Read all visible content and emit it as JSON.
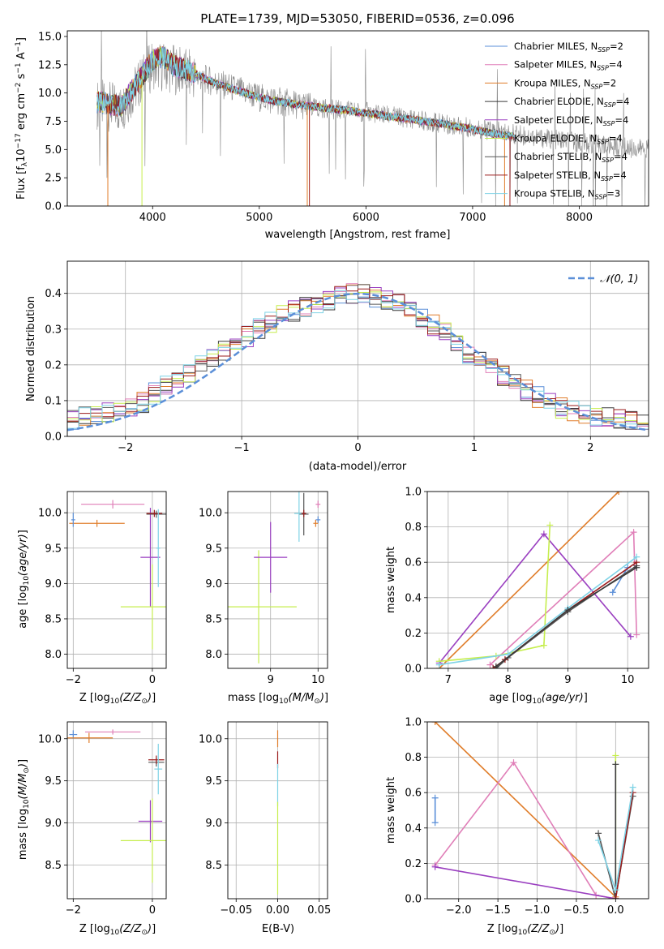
{
  "colors": {
    "Chabrier MILES": "#5b8fd8",
    "Salpeter MILES": "#e07fb8",
    "Kroupa MILES": "#e07d2a",
    "Chabrier ELODIE": "#3a3a3a",
    "Salpeter ELODIE": "#9a3fc0",
    "Kroupa ELODIE": "#c6ee4e",
    "Chabrier STELIB": "#555555",
    "Salpeter STELIB": "#9b1c1c",
    "Kroupa STELIB": "#7fd3e6",
    "data": "#8a8a8a",
    "normal": "#5b8fd8",
    "grid": "#b0b0b0"
  },
  "chart_data": [
    {
      "id": "spectrum",
      "type": "line",
      "title": "PLATE=1739, MJD=53050, FIBERID=0536, z=0.096",
      "xlabel": "wavelength [Angstrom, rest frame]",
      "ylabel": "Flux [f_λ10^-17 erg cm^-2 s^-1 A^-1]",
      "xlim": [
        3200,
        8650
      ],
      "ylim": [
        0,
        15.5
      ],
      "xticks": [
        4000,
        5000,
        6000,
        7000,
        8000
      ],
      "yticks": [
        0.0,
        2.5,
        5.0,
        7.5,
        10.0,
        12.5,
        15.0
      ],
      "grid": false,
      "legend_position": "top-right",
      "legend": [
        {
          "name": "Chabrier MILES",
          "nssp": "2"
        },
        {
          "name": "Salpeter MILES",
          "nssp": "4"
        },
        {
          "name": "Kroupa MILES",
          "nssp": "2"
        },
        {
          "name": "Chabrier ELODIE",
          "nssp": "4"
        },
        {
          "name": "Salpeter ELODIE",
          "nssp": "4"
        },
        {
          "name": "Kroupa ELODIE",
          "nssp": "4"
        },
        {
          "name": "Chabrier STELIB",
          "nssp": "4"
        },
        {
          "name": "Salpeter STELIB",
          "nssp": "4"
        },
        {
          "name": "Kroupa STELIB",
          "nssp": "3"
        }
      ],
      "model_continuum": {
        "x": [
          3500,
          3700,
          3900,
          4000,
          4100,
          4200,
          4400,
          4600,
          4800,
          5000,
          5200,
          5500,
          5800,
          6100,
          6400,
          6700,
          7000,
          7200,
          7400
        ],
        "y": [
          9.2,
          8.8,
          11.5,
          12.9,
          13.2,
          12.4,
          11.7,
          10.8,
          10.2,
          9.6,
          9.2,
          8.8,
          8.5,
          8.1,
          7.7,
          7.3,
          6.8,
          6.4,
          6.1
        ]
      },
      "data_continuum": {
        "x": [
          3500,
          3700,
          3900,
          4000,
          4200,
          4500,
          5000,
          5500,
          6000,
          6500,
          7000,
          7500,
          8000,
          8500,
          8650
        ],
        "y": [
          9.0,
          8.6,
          11.2,
          12.5,
          12.1,
          11.2,
          9.6,
          8.7,
          8.3,
          7.6,
          6.9,
          6.2,
          5.6,
          5.1,
          5.0
        ]
      }
    },
    {
      "id": "residuals",
      "type": "histogram",
      "xlabel": "(data-model)/error",
      "ylabel": "Normed distribution",
      "xlim": [
        -2.5,
        2.5
      ],
      "ylim": [
        0,
        0.49
      ],
      "xticks": [
        -2,
        -1,
        0,
        1,
        2
      ],
      "yticks": [
        0.0,
        0.1,
        0.2,
        0.3,
        0.4
      ],
      "grid": true,
      "legend_position": "top-right",
      "legend": [
        {
          "name": "N(0, 1)"
        }
      ],
      "bin_edges": [
        -2.5,
        -2.4,
        -2.3,
        -2.2,
        -2.1,
        -2.0,
        -1.9,
        -1.8,
        -1.7,
        -1.6,
        -1.5,
        -1.4,
        -1.3,
        -1.2,
        -1.1,
        -1.0,
        -0.9,
        -0.8,
        -0.7,
        -0.6,
        -0.5,
        -0.4,
        -0.3,
        -0.2,
        -0.1,
        0.0,
        0.1,
        0.2,
        0.3,
        0.4,
        0.5,
        0.6,
        0.7,
        0.8,
        0.9,
        1.0,
        1.1,
        1.2,
        1.3,
        1.4,
        1.5,
        1.6,
        1.7,
        1.8,
        1.9,
        2.0,
        2.1,
        2.2,
        2.3,
        2.4,
        2.5
      ],
      "base_density": [
        0.05,
        0.055,
        0.06,
        0.065,
        0.07,
        0.085,
        0.095,
        0.12,
        0.14,
        0.16,
        0.18,
        0.2,
        0.22,
        0.24,
        0.26,
        0.28,
        0.3,
        0.32,
        0.34,
        0.35,
        0.36,
        0.37,
        0.38,
        0.39,
        0.4,
        0.4,
        0.39,
        0.38,
        0.37,
        0.35,
        0.33,
        0.31,
        0.29,
        0.26,
        0.23,
        0.21,
        0.19,
        0.17,
        0.15,
        0.13,
        0.11,
        0.095,
        0.08,
        0.07,
        0.06,
        0.055,
        0.05,
        0.045,
        0.04,
        0.03
      ]
    },
    {
      "id": "age-vs-z",
      "type": "scatter",
      "xlabel": "Z [log10(Z/Z⊙)]",
      "ylabel": "age [log10(age/yr)]",
      "xlim": [
        -2.15,
        0.35
      ],
      "ylim": [
        7.8,
        10.3
      ],
      "xticks": [
        -2,
        0
      ],
      "yticks": [
        8.0,
        8.5,
        9.0,
        9.5,
        10.0
      ],
      "grid": true,
      "points": [
        {
          "series": "Kroupa MILES",
          "x": -1.4,
          "y": 9.85,
          "xerr": 0.7,
          "yerr": 0.05
        },
        {
          "series": "Salpeter MILES",
          "x": -1.0,
          "y": 10.12,
          "xerr": 0.8,
          "yerr": 0.06
        },
        {
          "series": "Chabrier MILES",
          "x": -2.0,
          "y": 9.9,
          "xerr": 0.05,
          "yerr": 0.1
        },
        {
          "series": "Salpeter ELODIE",
          "x": -0.05,
          "y": 9.37,
          "xerr": 0.25,
          "yerr": 0.7
        },
        {
          "series": "Kroupa ELODIE",
          "x": 0.0,
          "y": 8.67,
          "xerr": 0.8,
          "yerr": 0.6
        },
        {
          "series": "Chabrier STELIB",
          "x": 0.1,
          "y": 9.98,
          "xerr": 0.25,
          "yerr": 0.05
        },
        {
          "series": "Salpeter STELIB",
          "x": 0.05,
          "y": 9.99,
          "xerr": 0.2,
          "yerr": 0.05
        },
        {
          "series": "Kroupa STELIB",
          "x": 0.15,
          "y": 9.5,
          "xerr": 0.05,
          "yerr": 0.55
        }
      ]
    },
    {
      "id": "age-vs-mass",
      "type": "scatter",
      "xlabel": "mass [log10(M/M⊙)]",
      "ylabel": "",
      "xlim": [
        8.1,
        10.2
      ],
      "ylim": [
        7.8,
        10.3
      ],
      "xticks": [
        9,
        10
      ],
      "yticks": [
        8.0,
        8.5,
        9.0,
        9.5,
        10.0
      ],
      "grid": true,
      "points": [
        {
          "series": "Kroupa ELODIE",
          "x": 8.75,
          "y": 8.67,
          "xerr": 0.8,
          "yerr": 0.8
        },
        {
          "series": "Salpeter ELODIE",
          "x": 9.0,
          "y": 9.37,
          "xerr": 0.35,
          "yerr": 0.5
        },
        {
          "series": "Chabrier STELIB",
          "x": 9.7,
          "y": 9.98,
          "xerr": 0.1,
          "yerr": 0.3
        },
        {
          "series": "Kroupa STELIB",
          "x": 9.6,
          "y": 9.99,
          "xerr": 0.1,
          "yerr": 0.4
        },
        {
          "series": "Salpeter STELIB",
          "x": 9.7,
          "y": 9.99,
          "xerr": 0.05,
          "yerr": 0.05
        },
        {
          "series": "Salpeter MILES",
          "x": 10.0,
          "y": 10.12,
          "xerr": 0.05,
          "yerr": 0.05
        },
        {
          "series": "Chabrier MILES",
          "x": 10.0,
          "y": 9.9,
          "xerr": 0.05,
          "yerr": 0.05
        },
        {
          "series": "Kroupa MILES",
          "x": 9.95,
          "y": 9.85,
          "xerr": 0.05,
          "yerr": 0.05
        }
      ]
    },
    {
      "id": "mass-weight-vs-age",
      "type": "line",
      "xlabel": "age [log10(age/yr)]",
      "ylabel": "mass weight",
      "xlim": [
        6.65,
        10.35
      ],
      "ylim": [
        0,
        1.0
      ],
      "xticks": [
        7,
        8,
        9,
        10
      ],
      "yticks": [
        0.0,
        0.2,
        0.4,
        0.6,
        0.8,
        1.0
      ],
      "grid": true,
      "series": [
        {
          "name": "Kroupa MILES",
          "x": [
            6.85,
            9.85
          ],
          "y": [
            0.0,
            1.0
          ]
        },
        {
          "name": "Chabrier MILES",
          "x": [
            9.75,
            10.0
          ],
          "y": [
            0.43,
            0.57
          ]
        },
        {
          "name": "Salpeter MILES",
          "x": [
            7.7,
            10.1,
            10.15
          ],
          "y": [
            0.02,
            0.77,
            0.19
          ]
        },
        {
          "name": "Salpeter ELODIE",
          "x": [
            6.85,
            8.6,
            10.05
          ],
          "y": [
            0.03,
            0.76,
            0.18
          ]
        },
        {
          "name": "Kroupa ELODIE",
          "x": [
            6.85,
            7.8,
            8.6,
            8.7
          ],
          "y": [
            0.04,
            0.07,
            0.13,
            0.81
          ]
        },
        {
          "name": "Chabrier STELIB",
          "x": [
            7.8,
            8.0,
            9.0,
            10.15
          ],
          "y": [
            0.0,
            0.06,
            0.32,
            0.58
          ]
        },
        {
          "name": "Salpeter STELIB",
          "x": [
            7.75,
            7.95,
            9.0,
            10.15
          ],
          "y": [
            0.0,
            0.05,
            0.33,
            0.6
          ]
        },
        {
          "name": "Kroupa STELIB",
          "x": [
            6.85,
            8.0,
            9.0,
            10.15
          ],
          "y": [
            0.02,
            0.08,
            0.34,
            0.63
          ]
        },
        {
          "name": "Chabrier ELODIE",
          "x": [
            7.8,
            9.0,
            10.15
          ],
          "y": [
            0.01,
            0.33,
            0.57
          ]
        }
      ]
    },
    {
      "id": "mass-vs-z",
      "type": "scatter",
      "xlabel": "Z [log10(Z/Z⊙)]",
      "ylabel": "mass [log10(M/M⊙)]",
      "xlim": [
        -2.15,
        0.35
      ],
      "ylim": [
        8.1,
        10.2
      ],
      "xticks": [
        -2,
        0
      ],
      "yticks": [
        8.5,
        9.0,
        9.5,
        10.0
      ],
      "grid": true,
      "points": [
        {
          "series": "Chabrier MILES",
          "x": -2.0,
          "y": 10.05,
          "xerr": 0.1,
          "yerr": 0.05
        },
        {
          "series": "Salpeter MILES",
          "x": -1.0,
          "y": 10.08,
          "xerr": 0.7,
          "yerr": 0.03
        },
        {
          "series": "Kroupa MILES",
          "x": -1.6,
          "y": 10.01,
          "xerr": 0.6,
          "yerr": 0.06
        },
        {
          "series": "Chabrier STELIB",
          "x": 0.1,
          "y": 9.72,
          "xerr": 0.2,
          "yerr": 0.05
        },
        {
          "series": "Salpeter STELIB",
          "x": 0.1,
          "y": 9.75,
          "xerr": 0.2,
          "yerr": 0.05
        },
        {
          "series": "Kroupa STELIB",
          "x": 0.15,
          "y": 9.64,
          "xerr": 0.1,
          "yerr": 0.3
        },
        {
          "series": "Salpeter ELODIE",
          "x": -0.05,
          "y": 9.02,
          "xerr": 0.3,
          "yerr": 0.25
        },
        {
          "series": "Kroupa ELODIE",
          "x": 0.0,
          "y": 8.79,
          "xerr": 0.8,
          "yerr": 0.5
        }
      ]
    },
    {
      "id": "mass-vs-ebv",
      "type": "scatter",
      "xlabel": "E(B-V)",
      "ylabel": "",
      "xlim": [
        -0.06,
        0.06
      ],
      "ylim": [
        8.1,
        10.2
      ],
      "xticks": [
        -0.05,
        0.0,
        0.05
      ],
      "yticks": [
        8.5,
        9.0,
        9.5,
        10.0
      ],
      "grid": true,
      "points": [
        {
          "series": "Kroupa MILES",
          "x": 0.0,
          "y": 10.0,
          "xerr": 0.0,
          "yerr": 0.1
        },
        {
          "series": "Salpeter STELIB",
          "x": 0.0,
          "y": 9.75,
          "xerr": 0.0,
          "yerr": 0.1
        },
        {
          "series": "Kroupa STELIB",
          "x": 0.0,
          "y": 9.45,
          "xerr": 0.0,
          "yerr": 0.25
        },
        {
          "series": "Kroupa ELODIE",
          "x": 0.0,
          "y": 8.7,
          "xerr": 0.0,
          "yerr": 0.55
        }
      ]
    },
    {
      "id": "mass-weight-vs-z",
      "type": "line",
      "xlabel": "Z [log10(Z/Z⊙)]",
      "ylabel": "mass weight",
      "xlim": [
        -2.4,
        0.42
      ],
      "ylim": [
        0,
        1.0
      ],
      "xticks": [
        -2.0,
        -1.5,
        -1.0,
        -0.5,
        0.0
      ],
      "yticks": [
        0.0,
        0.2,
        0.4,
        0.6,
        0.8,
        1.0
      ],
      "grid": true,
      "series": [
        {
          "name": "Kroupa MILES",
          "x": [
            -2.3,
            0.0
          ],
          "y": [
            1.0,
            0.01
          ]
        },
        {
          "name": "Salpeter MILES",
          "x": [
            -2.3,
            -1.3,
            -0.25,
            0.0
          ],
          "y": [
            0.19,
            0.77,
            0.02,
            0.0
          ]
        },
        {
          "name": "Chabrier MILES",
          "x": [
            -2.3,
            -2.3
          ],
          "y": [
            0.43,
            0.57
          ]
        },
        {
          "name": "Salpeter ELODIE",
          "x": [
            -2.3,
            0.0
          ],
          "y": [
            0.18,
            0.0
          ]
        },
        {
          "name": "Kroupa ELODIE",
          "x": [
            0.0,
            0.0
          ],
          "y": [
            0.05,
            0.81
          ]
        },
        {
          "name": "Chabrier ELODIE",
          "x": [
            0.0,
            0.0
          ],
          "y": [
            0.0,
            0.76
          ]
        },
        {
          "name": "Chabrier STELIB",
          "x": [
            -0.22,
            0.0,
            0.22
          ],
          "y": [
            0.37,
            0.0,
            0.58
          ]
        },
        {
          "name": "Salpeter STELIB",
          "x": [
            0.0,
            0.22
          ],
          "y": [
            0.0,
            0.6
          ]
        },
        {
          "name": "Kroupa STELIB",
          "x": [
            -0.22,
            0.0,
            0.22
          ],
          "y": [
            0.33,
            0.05,
            0.63
          ]
        }
      ]
    }
  ]
}
